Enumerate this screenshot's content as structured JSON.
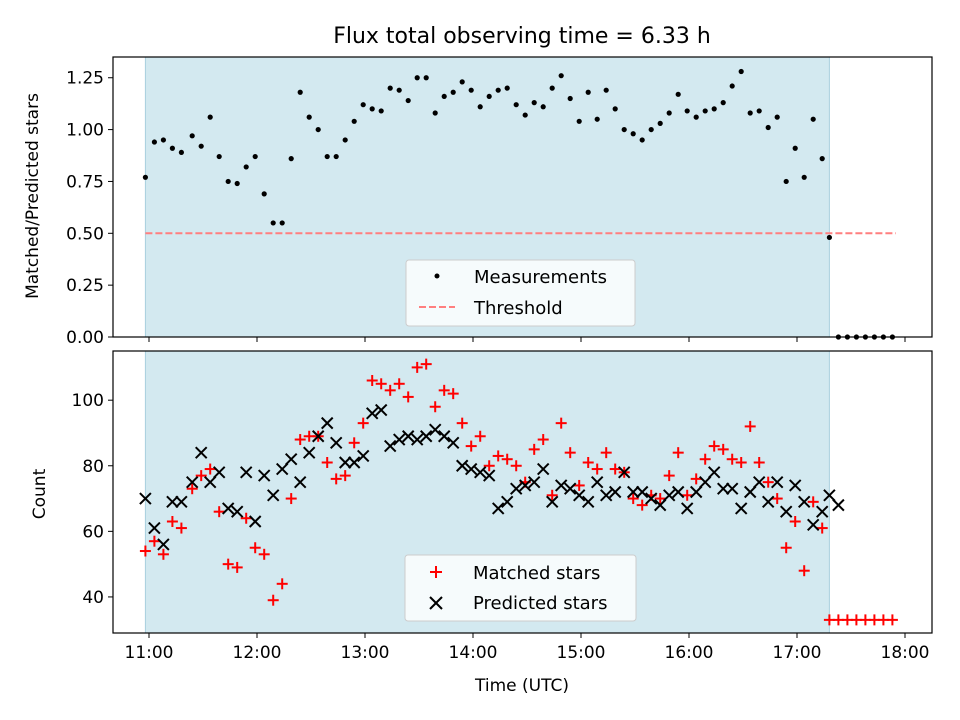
{
  "colors": {
    "shade": "#d3e9f0",
    "shade_edge": "#a9d0de",
    "measurement": "#000000",
    "threshold": "#ff7f7f",
    "matched": "#ff0000",
    "predicted": "#000000"
  },
  "chart_data": [
    {
      "type": "scatter",
      "title": "Flux total observing time = 6.33 h",
      "ylabel": "Matched/Predicted stars",
      "xlabel": "",
      "xlim": [
        "10:40",
        "18:15"
      ],
      "ylim": [
        0.0,
        1.35
      ],
      "y_ticks": [
        "0.00",
        "0.25",
        "0.50",
        "0.75",
        "1.00",
        "1.25"
      ],
      "observing_window": [
        "10:58",
        "17:18"
      ],
      "threshold": {
        "name": "Threshold",
        "value": 0.5,
        "x_range": [
          "10:58",
          "17:55"
        ]
      },
      "legend_position": "lower center",
      "series": [
        {
          "name": "Measurements",
          "marker": "dot",
          "x": [
            "10:58",
            "11:03",
            "11:08",
            "11:13",
            "11:18",
            "11:24",
            "11:29",
            "11:34",
            "11:39",
            "11:44",
            "11:49",
            "11:54",
            "11:59",
            "12:04",
            "12:09",
            "12:14",
            "12:19",
            "12:24",
            "12:29",
            "12:34",
            "12:39",
            "12:44",
            "12:49",
            "12:54",
            "12:59",
            "13:04",
            "13:09",
            "13:14",
            "13:19",
            "13:24",
            "13:29",
            "13:34",
            "13:39",
            "13:44",
            "13:49",
            "13:54",
            "13:59",
            "14:04",
            "14:09",
            "14:14",
            "14:19",
            "14:24",
            "14:29",
            "14:34",
            "14:39",
            "14:44",
            "14:49",
            "14:54",
            "14:59",
            "15:04",
            "15:09",
            "15:14",
            "15:19",
            "15:24",
            "15:29",
            "15:34",
            "15:39",
            "15:44",
            "15:49",
            "15:54",
            "15:59",
            "16:04",
            "16:09",
            "16:14",
            "16:19",
            "16:24",
            "16:29",
            "16:34",
            "16:39",
            "16:44",
            "16:49",
            "16:54",
            "16:59",
            "17:04",
            "17:09",
            "17:14",
            "17:18",
            "17:23",
            "17:28",
            "17:33",
            "17:38",
            "17:43",
            "17:48",
            "17:53"
          ],
          "y": [
            0.77,
            0.94,
            0.95,
            0.91,
            0.89,
            0.97,
            0.92,
            1.06,
            0.87,
            0.75,
            0.74,
            0.82,
            0.87,
            0.69,
            0.55,
            0.55,
            0.86,
            1.18,
            1.06,
            1.0,
            0.87,
            0.87,
            0.95,
            1.04,
            1.12,
            1.1,
            1.09,
            1.2,
            1.19,
            1.14,
            1.25,
            1.25,
            1.08,
            1.16,
            1.18,
            1.23,
            1.19,
            1.11,
            1.16,
            1.19,
            1.2,
            1.12,
            1.07,
            1.13,
            1.11,
            1.2,
            1.26,
            1.15,
            1.04,
            1.18,
            1.05,
            1.19,
            1.1,
            1.0,
            0.98,
            0.95,
            1.0,
            1.03,
            1.08,
            1.17,
            1.09,
            1.06,
            1.09,
            1.1,
            1.13,
            1.21,
            1.28,
            1.08,
            1.09,
            1.01,
            1.06,
            0.75,
            0.91,
            0.77,
            1.05,
            0.86,
            0.48,
            0.0,
            0.0,
            0.0,
            0.0,
            0.0,
            0.0,
            0.0
          ]
        }
      ]
    },
    {
      "type": "scatter",
      "title": "",
      "xlabel": "Time (UTC)",
      "ylabel": "Count",
      "xlim": [
        "10:40",
        "18:15"
      ],
      "ylim": [
        29,
        115
      ],
      "x_ticks": [
        "11:00",
        "12:00",
        "13:00",
        "14:00",
        "15:00",
        "16:00",
        "17:00",
        "18:00"
      ],
      "y_ticks": [
        "40",
        "60",
        "80",
        "100"
      ],
      "observing_window": [
        "10:58",
        "17:18"
      ],
      "legend_position": "lower center",
      "series": [
        {
          "name": "Matched stars",
          "marker": "plus",
          "x": [
            "10:58",
            "11:03",
            "11:08",
            "11:13",
            "11:18",
            "11:24",
            "11:29",
            "11:34",
            "11:39",
            "11:44",
            "11:49",
            "11:54",
            "11:59",
            "12:04",
            "12:09",
            "12:14",
            "12:19",
            "12:24",
            "12:29",
            "12:34",
            "12:39",
            "12:44",
            "12:49",
            "12:54",
            "12:59",
            "13:04",
            "13:09",
            "13:14",
            "13:19",
            "13:24",
            "13:29",
            "13:34",
            "13:39",
            "13:44",
            "13:49",
            "13:54",
            "13:59",
            "14:04",
            "14:09",
            "14:14",
            "14:19",
            "14:24",
            "14:29",
            "14:34",
            "14:39",
            "14:44",
            "14:49",
            "14:54",
            "14:59",
            "15:04",
            "15:09",
            "15:14",
            "15:19",
            "15:24",
            "15:29",
            "15:34",
            "15:39",
            "15:44",
            "15:49",
            "15:54",
            "15:59",
            "16:04",
            "16:09",
            "16:14",
            "16:19",
            "16:24",
            "16:29",
            "16:34",
            "16:39",
            "16:44",
            "16:49",
            "16:54",
            "16:59",
            "17:04",
            "17:09",
            "17:14",
            "17:18",
            "17:23",
            "17:28",
            "17:33",
            "17:38",
            "17:43",
            "17:48",
            "17:53"
          ],
          "y": [
            54,
            57,
            53,
            63,
            61,
            73,
            77,
            79,
            66,
            50,
            49,
            64,
            55,
            53,
            39,
            44,
            70,
            88,
            89,
            89,
            81,
            76,
            77,
            87,
            93,
            106,
            105,
            103,
            105,
            101,
            110,
            111,
            98,
            103,
            102,
            93,
            86,
            89,
            80,
            83,
            82,
            80,
            75,
            85,
            88,
            71,
            93,
            84,
            74,
            81,
            79,
            84,
            79,
            78,
            70,
            68,
            71,
            70,
            77,
            84,
            71,
            76,
            82,
            86,
            85,
            82,
            81,
            92,
            81,
            75,
            70,
            55,
            63,
            48,
            69,
            61,
            33,
            33,
            33,
            33,
            33,
            33,
            33,
            33
          ]
        },
        {
          "name": "Predicted stars",
          "marker": "x",
          "x": [
            "10:58",
            "11:03",
            "11:08",
            "11:13",
            "11:18",
            "11:24",
            "11:29",
            "11:34",
            "11:39",
            "11:44",
            "11:49",
            "11:54",
            "11:59",
            "12:04",
            "12:09",
            "12:14",
            "12:19",
            "12:24",
            "12:29",
            "12:34",
            "12:39",
            "12:44",
            "12:49",
            "12:54",
            "12:59",
            "13:04",
            "13:09",
            "13:14",
            "13:19",
            "13:24",
            "13:29",
            "13:34",
            "13:39",
            "13:44",
            "13:49",
            "13:54",
            "13:59",
            "14:04",
            "14:09",
            "14:14",
            "14:19",
            "14:24",
            "14:29",
            "14:34",
            "14:39",
            "14:44",
            "14:49",
            "14:54",
            "14:59",
            "15:04",
            "15:09",
            "15:14",
            "15:19",
            "15:24",
            "15:29",
            "15:34",
            "15:39",
            "15:44",
            "15:49",
            "15:54",
            "15:59",
            "16:04",
            "16:09",
            "16:14",
            "16:19",
            "16:24",
            "16:29",
            "16:34",
            "16:39",
            "16:44",
            "16:49",
            "16:54",
            "16:59",
            "17:04",
            "17:09",
            "17:14",
            "17:18",
            "17:23"
          ],
          "y": [
            70,
            61,
            56,
            69,
            69,
            75,
            84,
            75,
            78,
            67,
            66,
            78,
            63,
            77,
            71,
            79,
            82,
            75,
            84,
            89,
            93,
            87,
            81,
            81,
            83,
            96,
            97,
            86,
            88,
            89,
            88,
            89,
            91,
            89,
            87,
            80,
            79,
            78,
            77,
            67,
            69,
            73,
            74,
            75,
            79,
            69,
            74,
            73,
            71,
            69,
            75,
            71,
            72,
            78,
            72,
            72,
            70,
            68,
            71,
            72,
            67,
            72,
            75,
            78,
            73,
            73,
            67,
            72,
            75,
            69,
            75,
            66,
            74,
            69,
            62,
            66,
            71,
            68
          ]
        }
      ]
    }
  ]
}
